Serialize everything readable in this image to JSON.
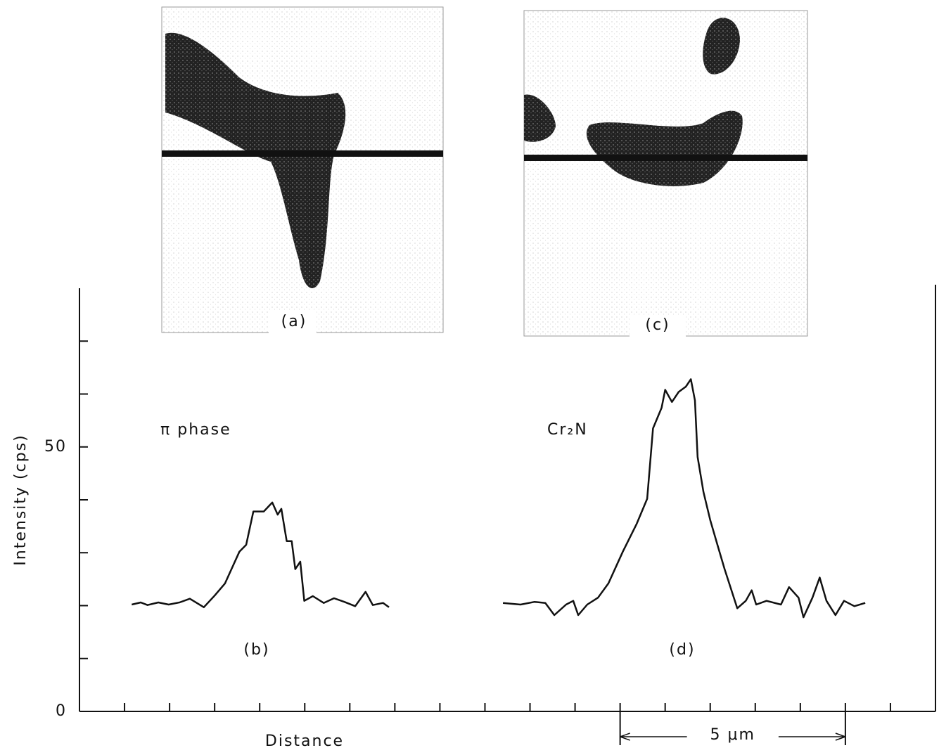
{
  "chart_data": {
    "type": "line",
    "ylabel": "Intensity (cps)",
    "xlabel": "Distance",
    "xlim": [
      0,
      19
    ],
    "ylim": [
      0,
      80
    ],
    "yticks": [
      0,
      50
    ],
    "yminorticks": [
      10,
      20,
      30,
      40,
      60,
      70
    ],
    "xminorticks": [
      1,
      2,
      3,
      4,
      5,
      6,
      7,
      8,
      9,
      10,
      11,
      12,
      13,
      14,
      15,
      16,
      17,
      18
    ],
    "panels": [
      "(a)",
      "(c)"
    ],
    "scalebar": {
      "label": "5 μm",
      "from": 12,
      "to": 17
    },
    "series": [
      {
        "name": "π phase",
        "label": "(b)",
        "color": "#111111",
        "x": [
          1.16,
          1.36,
          1.51,
          1.75,
          1.98,
          2.22,
          2.45,
          2.76,
          3.0,
          3.23,
          3.55,
          3.7,
          3.86,
          4.09,
          4.28,
          4.4,
          4.48,
          4.6,
          4.71,
          4.79,
          4.9,
          4.99,
          5.18,
          5.42,
          5.65,
          5.88,
          6.12,
          6.35,
          6.51,
          6.74,
          6.87
        ],
        "values": [
          20.2,
          20.6,
          20.1,
          20.6,
          20.2,
          20.6,
          21.3,
          19.7,
          21.9,
          24.2,
          30.2,
          31.5,
          37.8,
          37.8,
          39.5,
          37.2,
          38.3,
          32.2,
          32.2,
          26.9,
          28.3,
          20.9,
          21.8,
          20.5,
          21.4,
          20.7,
          19.9,
          22.6,
          20.1,
          20.5,
          19.7
        ]
      },
      {
        "name": "Cr₂N",
        "label": "(d)",
        "color": "#111111",
        "x": [
          9.4,
          9.79,
          10.1,
          10.34,
          10.54,
          10.8,
          10.96,
          11.07,
          11.27,
          11.51,
          11.74,
          12.06,
          12.37,
          12.6,
          12.73,
          12.92,
          13.0,
          13.15,
          13.3,
          13.46,
          13.57,
          13.66,
          13.72,
          13.85,
          14.0,
          14.16,
          14.32,
          14.6,
          14.79,
          14.92,
          15.02,
          15.25,
          15.57,
          15.75,
          15.96,
          16.07,
          16.27,
          16.43,
          16.58,
          16.78,
          16.97,
          17.2,
          17.44
        ],
        "values": [
          20.5,
          20.2,
          20.7,
          20.5,
          18.2,
          20.2,
          20.9,
          18.2,
          20.2,
          21.5,
          24.2,
          30.2,
          35.5,
          40.2,
          53.5,
          57.4,
          60.8,
          58.5,
          60.4,
          61.4,
          62.8,
          58.8,
          48.1,
          41.5,
          36.2,
          31.5,
          26.9,
          19.5,
          20.9,
          22.9,
          20.2,
          20.9,
          20.2,
          23.5,
          21.5,
          17.8,
          21.5,
          25.3,
          20.9,
          18.2,
          20.9,
          19.9,
          20.5
        ]
      }
    ]
  }
}
